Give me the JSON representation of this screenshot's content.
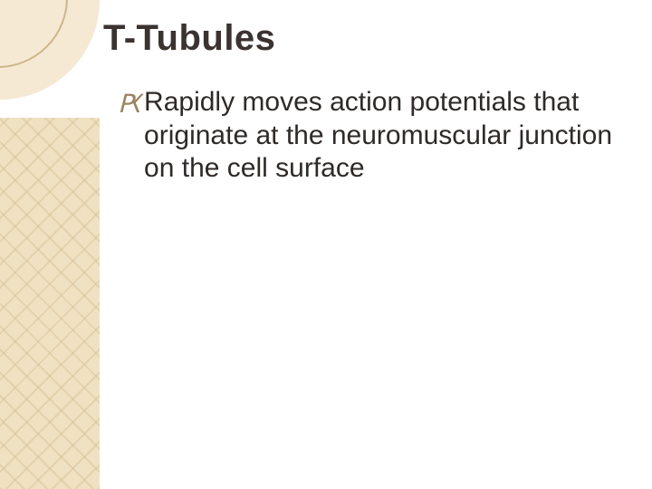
{
  "slide": {
    "title": "T-Tubules",
    "title_fontsize": 40,
    "title_color": "#3a3330",
    "body_fontsize": 30,
    "body_color": "#2e2a28",
    "bullet_glyph": "Ԗ",
    "bullet_color": "#9a8661",
    "bullets": [
      {
        "text": "Rapidly moves action potentials that originate at the neuromuscular junction on the cell surface"
      }
    ],
    "background_color": "#ffffff",
    "decoration": {
      "corner_circle_fill": "#f5e9d4",
      "corner_circle_ring": "#cdb58a",
      "left_band_bg": "#f0e1c2",
      "left_band_pattern": "#cdb58a"
    }
  }
}
